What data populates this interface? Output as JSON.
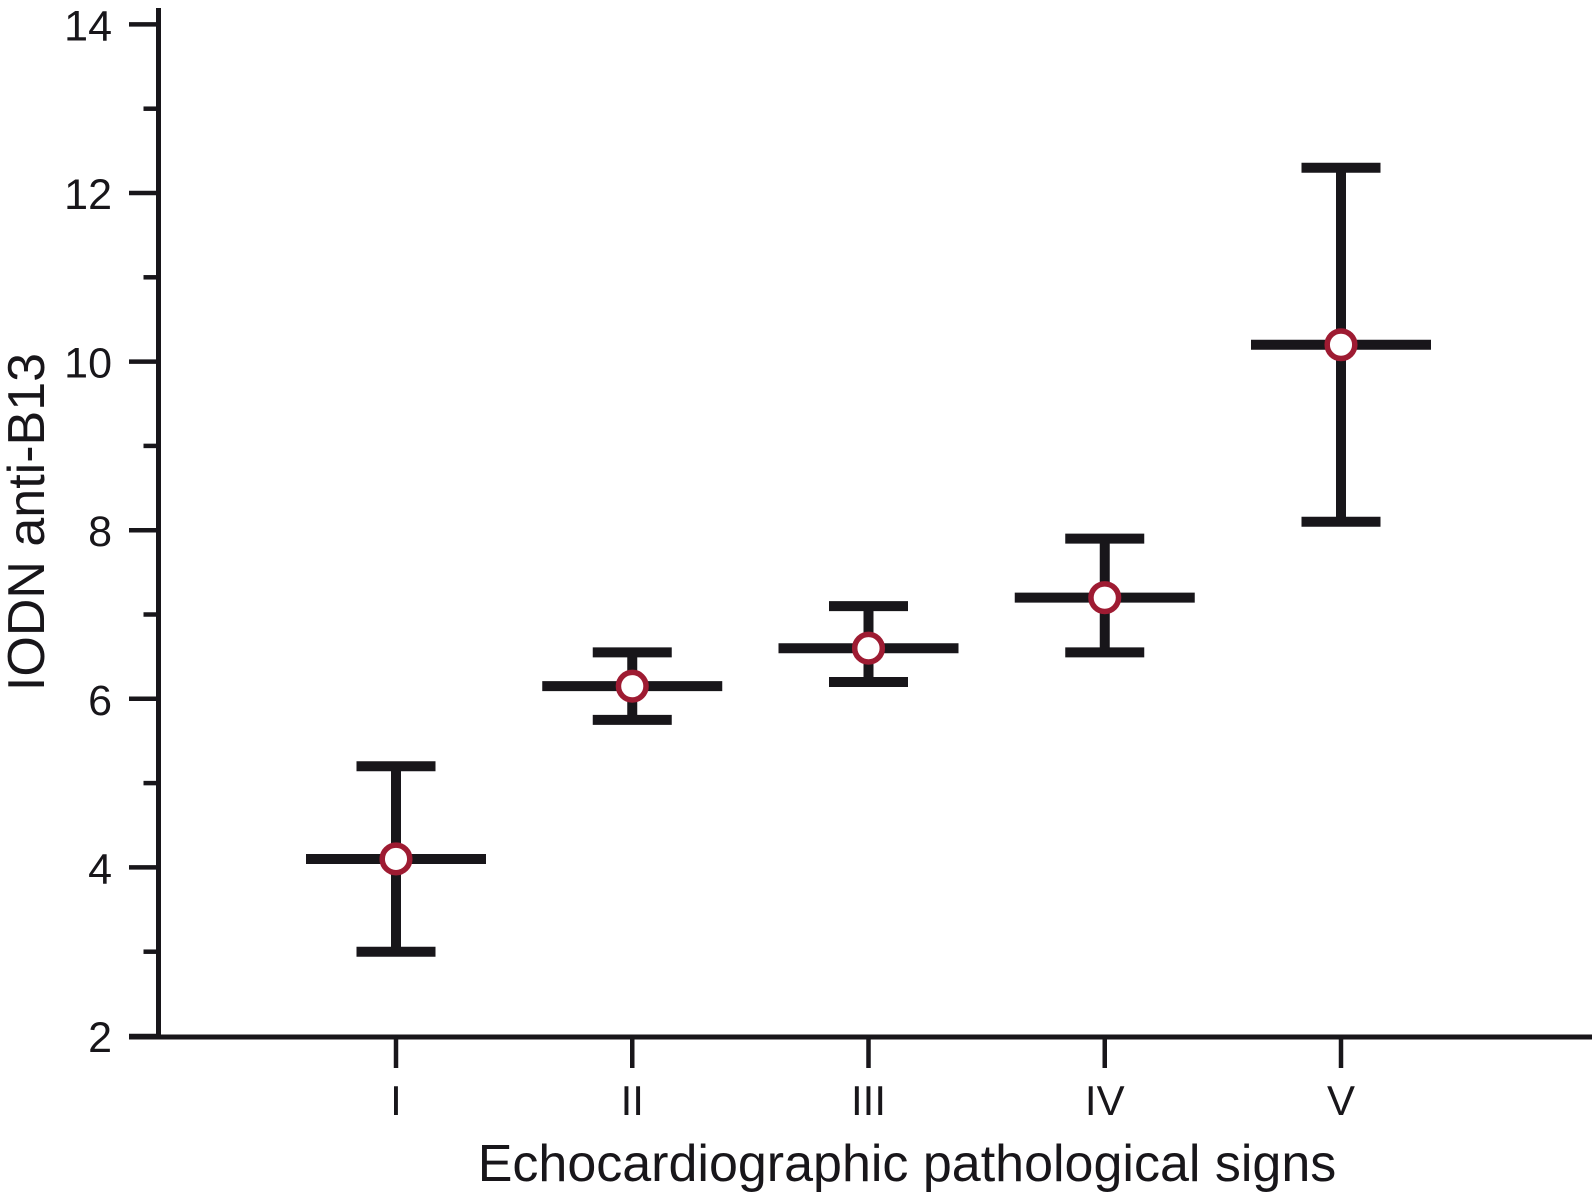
{
  "chart_data": {
    "type": "scatter",
    "subtype": "mean-with-error-bars",
    "title": "",
    "xlabel": "Echocardiographic pathological signs",
    "ylabel": "IODN anti-B13",
    "categories": [
      "I",
      "II",
      "III",
      "IV",
      "V"
    ],
    "series": [
      {
        "name": "IODN anti-B13",
        "means": [
          4.1,
          6.15,
          6.6,
          7.2,
          10.2
        ],
        "upper": [
          5.2,
          6.55,
          7.1,
          7.9,
          12.3
        ],
        "lower": [
          3.0,
          5.75,
          6.2,
          6.55,
          8.1
        ]
      }
    ],
    "ylim": [
      2,
      14
    ],
    "y_major_ticks": [
      2,
      4,
      6,
      8,
      10,
      12,
      14
    ],
    "y_minor_ticks": [
      3,
      5,
      7,
      9,
      11,
      13
    ],
    "grid": false,
    "legend": false,
    "marker": "open-circle",
    "ink_color": "#18161a",
    "marker_outline_color": "#9e1b32",
    "marker_fill_color": "#ffffff",
    "background_color": "#ffffff"
  }
}
